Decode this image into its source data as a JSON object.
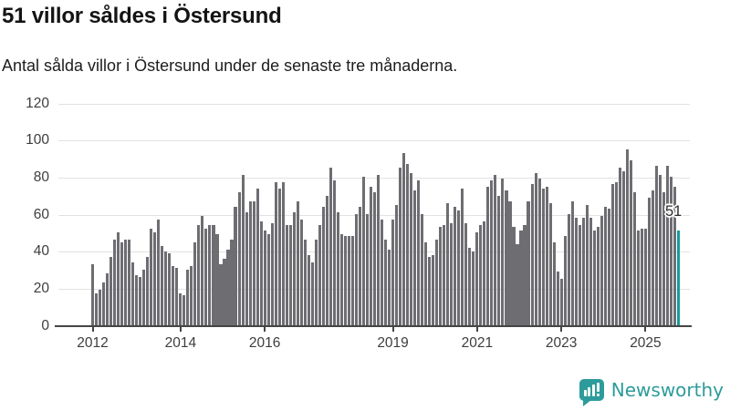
{
  "header": {
    "title": "51 villor såldes i Östersund",
    "subtitle": "Antal sålda villor i Östersund under de senaste tre månaderna."
  },
  "chart_data": {
    "type": "bar",
    "title": "51 villor såldes i Östersund",
    "subtitle": "Antal sålda villor i Östersund under de senaste tre månaderna.",
    "ylim": [
      0,
      120
    ],
    "y_ticks": [
      0,
      20,
      40,
      60,
      80,
      100,
      120
    ],
    "grid": "horizontal",
    "x_ticks": [
      {
        "label": "2012",
        "index": 0
      },
      {
        "label": "2014",
        "index": 24
      },
      {
        "label": "2016",
        "index": 47
      },
      {
        "label": "2019",
        "index": 82
      },
      {
        "label": "2021",
        "index": 105
      },
      {
        "label": "2023",
        "index": 128
      },
      {
        "label": "2025",
        "index": 151
      }
    ],
    "values": [
      33,
      17,
      19,
      23,
      28,
      37,
      46,
      50,
      45,
      46,
      46,
      34,
      27,
      26,
      30,
      37,
      52,
      50,
      57,
      43,
      40,
      39,
      32,
      31,
      17,
      16,
      30,
      32,
      45,
      54,
      59,
      52,
      54,
      54,
      49,
      33,
      36,
      41,
      46,
      64,
      72,
      81,
      61,
      67,
      67,
      74,
      56,
      51,
      49,
      55,
      77,
      74,
      77,
      54,
      54,
      61,
      67,
      57,
      46,
      38,
      34,
      46,
      54,
      64,
      70,
      85,
      78,
      61,
      49,
      48,
      48,
      48,
      60,
      64,
      80,
      60,
      75,
      72,
      81,
      57,
      46,
      41,
      57,
      65,
      85,
      93,
      87,
      82,
      73,
      78,
      60,
      45,
      37,
      38,
      46,
      53,
      54,
      66,
      55,
      64,
      62,
      74,
      55,
      42,
      40,
      50,
      54,
      56,
      75,
      78,
      81,
      70,
      79,
      73,
      67,
      53,
      44,
      51,
      54,
      67,
      76,
      82,
      79,
      74,
      75,
      66,
      45,
      29,
      25,
      48,
      60,
      67,
      58,
      54,
      58,
      65,
      58,
      51,
      53,
      59,
      64,
      63,
      76,
      77,
      85,
      83,
      95,
      89,
      72,
      51,
      52,
      52,
      69,
      73,
      86,
      81,
      72,
      86,
      80,
      75,
      51
    ],
    "bar_color": "#6e6d72",
    "highlight": {
      "index": 160,
      "value": 51,
      "label": "51",
      "color": "#169b9b"
    }
  },
  "footer": {
    "brand": "Newsworthy",
    "brand_color": "#2d9b9b"
  }
}
